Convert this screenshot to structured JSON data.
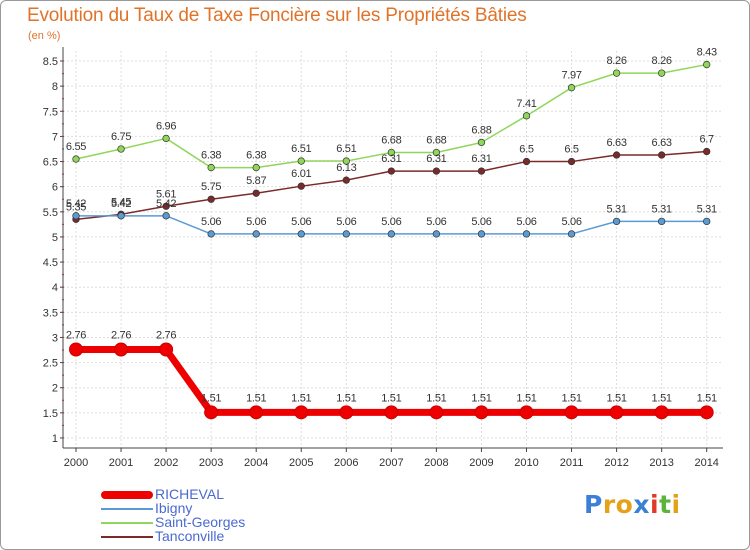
{
  "title": "Evolution du Taux de Taxe Foncière sur les Propriétés Bâties",
  "unit_label": "(en %)",
  "chart_data": {
    "type": "line",
    "title": "Evolution du Taux de Taxe Foncière sur les Propriétés Bâties",
    "ylabel": "(en %)",
    "xlabel": "",
    "x": [
      "2000",
      "2001",
      "2002",
      "2003",
      "2004",
      "2005",
      "2006",
      "2007",
      "2008",
      "2009",
      "2010",
      "2011",
      "2012",
      "2013",
      "2014"
    ],
    "ylim": [
      0.8,
      8.7
    ],
    "yticks": [
      "1",
      "1.5",
      "2",
      "2.5",
      "3",
      "3.5",
      "4",
      "4.5",
      "5",
      "5.5",
      "6",
      "6.5",
      "7",
      "7.5",
      "8",
      "8.5"
    ],
    "grid": true,
    "series": [
      {
        "name": "RICHEVAL",
        "color": "#ee0000",
        "values": [
          2.76,
          2.76,
          2.76,
          1.51,
          1.51,
          1.51,
          1.51,
          1.51,
          1.51,
          1.51,
          1.51,
          1.51,
          1.51,
          1.51,
          1.51
        ],
        "labels": [
          "2.76",
          "2.76",
          "2.76",
          "1.51",
          "1.51",
          "1.51",
          "1.51",
          "1.51",
          "1.51",
          "1.51",
          "1.51",
          "1.51",
          "1.51",
          "1.51",
          "1.51"
        ]
      },
      {
        "name": "Ibigny",
        "color": "#5b9bd5",
        "values": [
          5.42,
          5.42,
          5.42,
          5.06,
          5.06,
          5.06,
          5.06,
          5.06,
          5.06,
          5.06,
          5.06,
          5.06,
          5.31,
          5.31,
          5.31
        ],
        "labels": [
          "5.42",
          "5.42",
          "5.42",
          "5.06",
          "5.06",
          "5.06",
          "5.06",
          "5.06",
          "5.06",
          "5.06",
          "5.06",
          "5.06",
          "5.31",
          "5.31",
          "5.31"
        ]
      },
      {
        "name": "Saint-Georges",
        "color": "#8fd65a",
        "values": [
          6.55,
          6.75,
          6.96,
          6.38,
          6.38,
          6.51,
          6.51,
          6.68,
          6.68,
          6.88,
          7.41,
          7.97,
          8.26,
          8.26,
          8.43
        ],
        "labels": [
          "6.55",
          "6.75",
          "6.96",
          "6.38",
          "6.38",
          "6.51",
          "6.51",
          "6.68",
          "6.68",
          "6.88",
          "7.41",
          "7.97",
          "8.26",
          "8.26",
          "8.43"
        ]
      },
      {
        "name": "Tanconville",
        "color": "#7b2a2a",
        "values": [
          5.35,
          5.45,
          5.61,
          5.75,
          5.87,
          6.01,
          6.13,
          6.31,
          6.31,
          6.31,
          6.5,
          6.5,
          6.63,
          6.63,
          6.7
        ],
        "labels": [
          "5.35",
          "5.45",
          "5.61",
          "5.75",
          "5.87",
          "6.01",
          "6.13",
          "6.31",
          "6.31",
          "6.31",
          "6.5",
          "6.5",
          "6.63",
          "6.63",
          "6.7"
        ]
      }
    ]
  },
  "legend": {
    "items": [
      "RICHEVAL",
      "Ibigny",
      "Saint-Georges",
      "Tanconville"
    ]
  },
  "logo": {
    "letters": [
      "P",
      "r",
      "o",
      "x",
      "i",
      "t",
      "i"
    ],
    "colors": [
      "#3b7fd6",
      "#e6a11a",
      "#e6a11a",
      "#3b7fd6",
      "#e23a2a",
      "#5bb53a",
      "#e6a11a"
    ]
  }
}
